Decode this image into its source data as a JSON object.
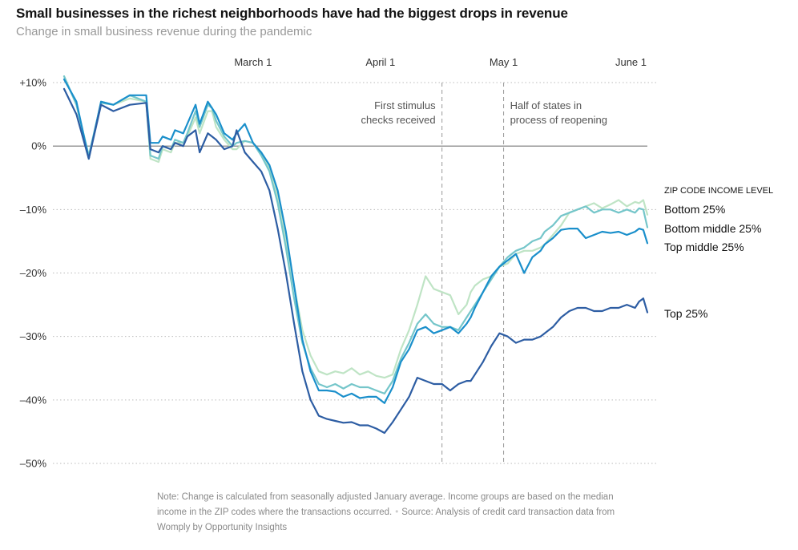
{
  "header": {
    "title": "Small businesses in the richest neighborhoods have had the biggest drops in revenue",
    "subtitle": "Change in small business revenue during the pandemic"
  },
  "note": {
    "text": "Note: Change is calculated from seasonally adjusted January average. Income groups are based on the median income in the ZIP codes where the transactions occurred.",
    "separator": "•",
    "source": "Source: Analysis of credit card transaction data from Womply by Opportunity Insights"
  },
  "chart_data": {
    "type": "line",
    "title": "Change in small business revenue during the pandemic",
    "xlabel": "",
    "ylabel": "",
    "x_unit": "days since Jan 1, 2020",
    "xlim": [
      14,
      156
    ],
    "ylim": [
      -50,
      10
    ],
    "yticks": [
      {
        "value": 10,
        "label": "+10%"
      },
      {
        "value": 0,
        "label": "0%"
      },
      {
        "value": -10,
        "label": "–10%"
      },
      {
        "value": -20,
        "label": "–20%"
      },
      {
        "value": -30,
        "label": "–30%"
      },
      {
        "value": -40,
        "label": "–40%"
      },
      {
        "value": -50,
        "label": "–50%"
      }
    ],
    "xticks": [
      {
        "value": 60,
        "label": "March 1"
      },
      {
        "value": 91,
        "label": "April 1"
      },
      {
        "value": 121,
        "label": "May 1"
      },
      {
        "value": 152,
        "label": "June 1"
      }
    ],
    "legend_title": "ZIP CODE INCOME LEVEL",
    "legend_position": "right",
    "annotations": [
      {
        "x": 106,
        "lines": [
          "First stimulus",
          "checks received"
        ],
        "align": "right"
      },
      {
        "x": 121,
        "lines": [
          "Half of states in",
          "process of reopening"
        ],
        "align": "left"
      }
    ],
    "series": [
      {
        "name": "Bottom 25%",
        "color": "#bfe4c5",
        "x": [
          14,
          17,
          20,
          23,
          26,
          30,
          34,
          35,
          37,
          38,
          40,
          41,
          43,
          44,
          46,
          47,
          49,
          50,
          51,
          53,
          55,
          56,
          58,
          60,
          62,
          64,
          66,
          68,
          70,
          72,
          74,
          76,
          78,
          80,
          82,
          84,
          86,
          88,
          90,
          92,
          94,
          96,
          98,
          100,
          102,
          104,
          106,
          108,
          110,
          112,
          113,
          114,
          116,
          118,
          120,
          122,
          124,
          126,
          128,
          130,
          131,
          133,
          135,
          137,
          139,
          141,
          143,
          145,
          147,
          149,
          151,
          153,
          154,
          155,
          156
        ],
        "values": [
          11,
          6.5,
          -2,
          7,
          6.5,
          7.5,
          7,
          -2,
          -2.5,
          -0.5,
          -1,
          0.5,
          0.5,
          1.5,
          4.5,
          2,
          5.5,
          5.5,
          3,
          1,
          -0.5,
          -0.5,
          0.8,
          0.5,
          -1,
          -3.5,
          -8,
          -15,
          -22,
          -29,
          -33,
          -35.5,
          -36,
          -35.5,
          -35.8,
          -35,
          -36,
          -35.5,
          -36.2,
          -36.5,
          -36,
          -32,
          -29,
          -25,
          -20.5,
          -22.5,
          -23,
          -23.5,
          -26.5,
          -25,
          -23,
          -22,
          -21,
          -20.5,
          -19,
          -18.5,
          -17,
          -16.5,
          -16.5,
          -16,
          -15.5,
          -14,
          -12.5,
          -10.5,
          -10,
          -9.5,
          -9,
          -9.8,
          -9.2,
          -8.5,
          -9.5,
          -8.8,
          -9,
          -8.5,
          -10.8
        ]
      },
      {
        "name": "Bottom middle 25%",
        "color": "#75c6ca",
        "x": [
          14,
          17,
          20,
          23,
          26,
          30,
          34,
          35,
          37,
          38,
          40,
          41,
          43,
          44,
          46,
          47,
          49,
          50,
          51,
          53,
          55,
          56,
          58,
          60,
          62,
          64,
          66,
          68,
          70,
          72,
          74,
          76,
          78,
          80,
          82,
          84,
          86,
          88,
          90,
          92,
          94,
          96,
          98,
          100,
          102,
          104,
          106,
          108,
          110,
          112,
          113,
          114,
          116,
          118,
          120,
          122,
          124,
          126,
          128,
          130,
          131,
          133,
          135,
          137,
          139,
          141,
          143,
          145,
          147,
          149,
          151,
          153,
          154,
          155,
          156
        ],
        "values": [
          11,
          6.5,
          -1.5,
          6.8,
          6.5,
          8,
          7,
          -1.5,
          -2,
          0,
          -0.5,
          1,
          0.5,
          2,
          5.5,
          3,
          6.5,
          6,
          4,
          1.5,
          0,
          0.5,
          0.8,
          0.5,
          -1.5,
          -4,
          -9,
          -16,
          -24,
          -31,
          -35,
          -37.5,
          -38,
          -37.5,
          -38.2,
          -37.5,
          -38,
          -38,
          -38.5,
          -39,
          -37,
          -33.5,
          -31,
          -28,
          -26.5,
          -28,
          -28.5,
          -28.5,
          -29,
          -27,
          -26,
          -25,
          -23,
          -21,
          -19,
          -17.5,
          -16.5,
          -16,
          -15,
          -14.5,
          -13.5,
          -12.5,
          -11,
          -10.5,
          -10,
          -9.5,
          -10.5,
          -10,
          -10,
          -10.5,
          -10,
          -10.5,
          -9.8,
          -10,
          -12.8
        ]
      },
      {
        "name": "Top middle 25%",
        "color": "#1a8fcb",
        "x": [
          14,
          17,
          20,
          23,
          26,
          30,
          34,
          35,
          37,
          38,
          40,
          41,
          43,
          44,
          46,
          47,
          49,
          50,
          51,
          53,
          55,
          56,
          58,
          60,
          62,
          64,
          66,
          68,
          70,
          72,
          74,
          76,
          78,
          80,
          82,
          84,
          86,
          88,
          90,
          92,
          94,
          96,
          98,
          100,
          102,
          104,
          106,
          108,
          110,
          112,
          113,
          114,
          116,
          118,
          120,
          122,
          124,
          126,
          128,
          130,
          131,
          133,
          135,
          137,
          139,
          141,
          143,
          145,
          147,
          149,
          151,
          153,
          154,
          155,
          156
        ],
        "values": [
          10.5,
          7,
          -2,
          7,
          6.5,
          8,
          8,
          0.5,
          0.5,
          1.5,
          1,
          2.5,
          2,
          3.5,
          6.5,
          3.5,
          7,
          6,
          5,
          2,
          1,
          2,
          3.5,
          0.5,
          -1,
          -3,
          -7,
          -13.5,
          -22,
          -30.5,
          -35.5,
          -38.5,
          -38.5,
          -38.7,
          -39.5,
          -39,
          -39.7,
          -39.5,
          -39.5,
          -40.5,
          -38,
          -34,
          -32,
          -29,
          -28.5,
          -29.5,
          -29,
          -28.5,
          -29.5,
          -28,
          -27,
          -25.5,
          -23,
          -20.5,
          -19,
          -18,
          -17,
          -20,
          -17.5,
          -16.5,
          -15.5,
          -14.5,
          -13.2,
          -13,
          -13,
          -14.5,
          -14,
          -13.5,
          -13.7,
          -13.5,
          -14,
          -13.5,
          -13,
          -13.2,
          -15.3
        ]
      },
      {
        "name": "Top 25%",
        "color": "#2d5da3",
        "x": [
          14,
          17,
          20,
          23,
          26,
          30,
          34,
          35,
          37,
          38,
          40,
          41,
          43,
          44,
          46,
          47,
          49,
          50,
          51,
          53,
          55,
          56,
          58,
          60,
          62,
          64,
          66,
          68,
          70,
          72,
          74,
          76,
          78,
          80,
          82,
          84,
          86,
          88,
          90,
          92,
          94,
          96,
          98,
          100,
          102,
          104,
          106,
          108,
          110,
          112,
          113,
          114,
          116,
          118,
          120,
          122,
          124,
          126,
          128,
          130,
          131,
          133,
          135,
          137,
          139,
          141,
          143,
          145,
          147,
          149,
          151,
          153,
          154,
          155,
          156
        ],
        "values": [
          9,
          5,
          -2,
          6.5,
          5.5,
          6.5,
          6.8,
          -0.5,
          -1,
          0,
          -0.5,
          0.5,
          0,
          1.5,
          2.5,
          -1,
          2,
          1.5,
          1,
          -0.5,
          0,
          2.5,
          -1,
          -2.5,
          -4,
          -7,
          -13,
          -20,
          -28,
          -35.5,
          -40,
          -42.5,
          -43,
          -43.3,
          -43.6,
          -43.5,
          -44,
          -44,
          -44.5,
          -45.2,
          -43.5,
          -41.5,
          -39.5,
          -36.5,
          -37,
          -37.5,
          -37.5,
          -38.5,
          -37.5,
          -37,
          -37,
          -36,
          -34,
          -31.5,
          -29.5,
          -30,
          -31,
          -30.5,
          -30.5,
          -30,
          -29.5,
          -28.5,
          -27,
          -26,
          -25.5,
          -25.5,
          -26,
          -26,
          -25.5,
          -25.5,
          -25,
          -25.5,
          -24.5,
          -24,
          -26.2
        ]
      }
    ]
  }
}
